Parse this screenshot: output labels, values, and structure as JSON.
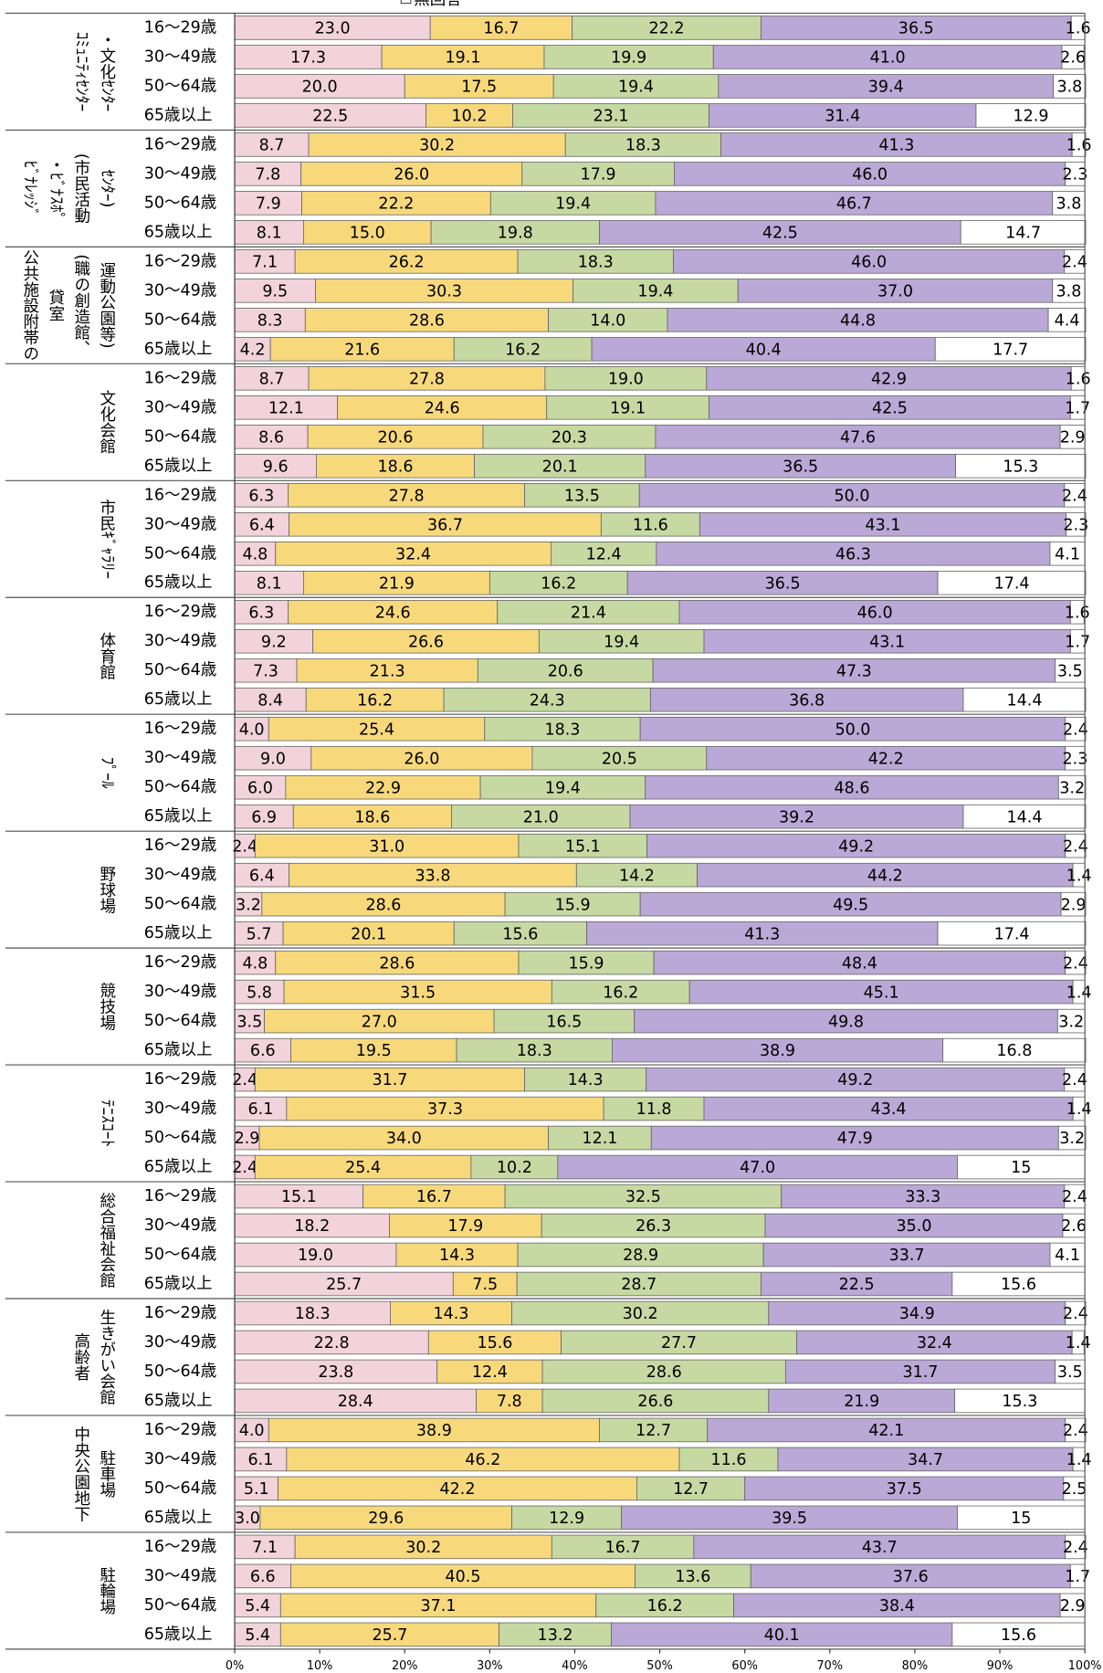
{
  "chart_data": {
    "type": "bar",
    "orientation": "horizontal",
    "stacked": true,
    "legend_visible": [
      "無回答"
    ],
    "groups": [
      {
        "label": [
          "ｺﾐｭﾆﾃｨｾﾝﾀｰ",
          "・文化ｾﾝﾀｰ"
        ]
      },
      {
        "label": [
          "ﾋﾞﾅﾚｯｼﾞ",
          "・ﾋﾞﾅｽﾎﾟ",
          "(市民活動",
          "ｾﾝﾀｰ)"
        ]
      },
      {
        "label": [
          "公共施設附帯の",
          "貸室",
          "(職の創造館、",
          "運動公園等)"
        ]
      },
      {
        "label": [
          "文化会館"
        ]
      },
      {
        "label": [
          "市民ｷﾞｬﾗﾘｰ"
        ]
      },
      {
        "label": [
          "体育館"
        ]
      },
      {
        "label": [
          "ﾌﾟｰﾙ"
        ]
      },
      {
        "label": [
          "野球場"
        ]
      },
      {
        "label": [
          "競技場"
        ]
      },
      {
        "label": [
          "ﾃﾆｽｺｰﾄ"
        ]
      },
      {
        "label": [
          "総合福祉会館"
        ]
      },
      {
        "label": [
          "高齢者",
          "生きがい会館"
        ]
      },
      {
        "label": [
          "中央公園地下",
          "駐車場"
        ]
      },
      {
        "label": [
          "駐輪場"
        ]
      }
    ],
    "categories": [
      "16～29歳",
      "30～49歳",
      "50～64歳",
      "65歳以上",
      "16～29歳",
      "30～49歳",
      "50～64歳",
      "65歳以上",
      "16～29歳",
      "30～49歳",
      "50～64歳",
      "65歳以上",
      "16～29歳",
      "30～49歳",
      "50～64歳",
      "65歳以上",
      "16～29歳",
      "30～49歳",
      "50～64歳",
      "65歳以上",
      "16～29歳",
      "30～49歳",
      "50～64歳",
      "65歳以上",
      "16～29歳",
      "30～49歳",
      "50～64歳",
      "65歳以上",
      "16～29歳",
      "30～49歳",
      "50～64歳",
      "65歳以上",
      "16～29歳",
      "30～49歳",
      "50～64歳",
      "65歳以上",
      "16～29歳",
      "30～49歳",
      "50～64歳",
      "65歳以上",
      "16～29歳",
      "30～49歳",
      "50～64歳",
      "65歳以上",
      "16～29歳",
      "30～49歳",
      "50～64歳",
      "65歳以上",
      "16～29歳",
      "30～49歳",
      "50～64歳",
      "65歳以上",
      "16～29歳",
      "30～49歳",
      "50～64歳",
      "65歳以上"
    ],
    "series": [
      {
        "color": "#f2d3db",
        "values": [
          23.0,
          17.3,
          20.0,
          22.5,
          8.7,
          7.8,
          7.9,
          8.1,
          7.1,
          9.5,
          8.3,
          4.2,
          8.7,
          12.1,
          8.6,
          9.6,
          6.3,
          6.4,
          4.8,
          8.1,
          6.3,
          9.2,
          7.3,
          8.4,
          4.0,
          9.0,
          6.0,
          6.9,
          2.4,
          6.4,
          3.2,
          5.7,
          4.8,
          5.8,
          3.5,
          6.6,
          2.4,
          6.1,
          2.9,
          2.4,
          15.1,
          18.2,
          19.0,
          25.7,
          18.3,
          22.8,
          23.8,
          28.4,
          4.0,
          6.1,
          5.1,
          3.0,
          7.1,
          6.6,
          5.4,
          5.4
        ],
        "value_labels": [
          "23.0",
          "17.3",
          "20.0",
          "22.5",
          "8.7",
          "7.8",
          "7.9",
          "8.1",
          "7.1",
          "9.5",
          "8.3",
          "4.2",
          "8.7",
          "12.1",
          "8.6",
          "9.6",
          "6.3",
          "6.4",
          "4.8",
          "8.1",
          "6.3",
          "9.2",
          "7.3",
          "8.4",
          "4.0",
          "9.0",
          "6.0",
          "6.9",
          "2.4",
          "6.4",
          "3.2",
          "5.7",
          "4.8",
          "5.8",
          "3.5",
          "6.6",
          "2.4",
          "6.1",
          "2.9",
          "2.4",
          "15.1",
          "18.2",
          "19.0",
          "25.7",
          "18.3",
          "22.8",
          "23.8",
          "28.4",
          "4.0",
          "6.1",
          "5.1",
          "3.0",
          "7.1",
          "6.6",
          "5.4",
          "5.4"
        ]
      },
      {
        "color": "#f7d97c",
        "values": [
          16.7,
          19.1,
          17.5,
          10.2,
          30.2,
          26.0,
          22.2,
          15.0,
          26.2,
          30.3,
          28.6,
          21.6,
          27.8,
          24.6,
          20.6,
          18.6,
          27.8,
          36.7,
          32.4,
          21.9,
          24.6,
          26.6,
          21.3,
          16.2,
          25.4,
          26.0,
          22.9,
          18.6,
          31.0,
          33.8,
          28.6,
          20.1,
          28.6,
          31.5,
          27.0,
          19.5,
          31.7,
          37.3,
          34.0,
          25.4,
          16.7,
          17.9,
          14.3,
          7.5,
          14.3,
          15.6,
          12.4,
          7.8,
          38.9,
          46.2,
          42.2,
          29.6,
          30.2,
          40.5,
          37.1,
          25.7
        ],
        "value_labels": [
          "16.7",
          "19.1",
          "17.5",
          "10.2",
          "30.2",
          "26.0",
          "22.2",
          "15.0",
          "26.2",
          "30.3",
          "28.6",
          "21.6",
          "27.8",
          "24.6",
          "20.6",
          "18.6",
          "27.8",
          "36.7",
          "32.4",
          "21.9",
          "24.6",
          "26.6",
          "21.3",
          "16.2",
          "25.4",
          "26.0",
          "22.9",
          "18.6",
          "31.0",
          "33.8",
          "28.6",
          "20.1",
          "28.6",
          "31.5",
          "27.0",
          "19.5",
          "31.7",
          "37.3",
          "34.0",
          "25.4",
          "16.7",
          "17.9",
          "14.3",
          "7.5",
          "14.3",
          "15.6",
          "12.4",
          "7.8",
          "38.9",
          "46.2",
          "42.2",
          "29.6",
          "30.2",
          "40.5",
          "37.1",
          "25.7"
        ]
      },
      {
        "color": "#c6d9a2",
        "values": [
          22.2,
          19.9,
          19.4,
          23.1,
          18.3,
          17.9,
          19.4,
          19.8,
          18.3,
          19.4,
          14.0,
          16.2,
          19.0,
          19.1,
          20.3,
          20.1,
          13.5,
          11.6,
          12.4,
          16.2,
          21.4,
          19.4,
          20.6,
          24.3,
          18.3,
          20.5,
          19.4,
          21.0,
          15.1,
          14.2,
          15.9,
          15.6,
          15.9,
          16.2,
          16.5,
          18.3,
          14.3,
          11.8,
          12.1,
          10.2,
          32.5,
          26.3,
          28.9,
          28.7,
          30.2,
          27.7,
          28.6,
          26.6,
          12.7,
          11.6,
          12.7,
          12.9,
          16.7,
          13.6,
          16.2,
          13.2
        ],
        "value_labels": [
          "22.2",
          "19.9",
          "19.4",
          "23.1",
          "18.3",
          "17.9",
          "19.4",
          "19.8",
          "18.3",
          "19.4",
          "14.0",
          "16.2",
          "19.0",
          "19.1",
          "20.3",
          "20.1",
          "13.5",
          "11.6",
          "12.4",
          "16.2",
          "21.4",
          "19.4",
          "20.6",
          "24.3",
          "18.3",
          "20.5",
          "19.4",
          "21.0",
          "15.1",
          "14.2",
          "15.9",
          "15.6",
          "15.9",
          "16.2",
          "16.5",
          "18.3",
          "14.3",
          "11.8",
          "12.1",
          "10.2",
          "32.5",
          "26.3",
          "28.9",
          "28.7",
          "30.2",
          "27.7",
          "28.6",
          "26.6",
          "12.7",
          "11.6",
          "12.7",
          "12.9",
          "16.7",
          "13.6",
          "16.2",
          "13.2"
        ]
      },
      {
        "color": "#baa8d6",
        "values": [
          36.5,
          41.0,
          39.4,
          31.4,
          41.3,
          46.0,
          46.7,
          42.5,
          46.0,
          37.0,
          44.8,
          40.4,
          42.9,
          42.5,
          47.6,
          36.5,
          50.0,
          43.1,
          46.3,
          36.5,
          46.0,
          43.1,
          47.3,
          36.8,
          50.0,
          42.2,
          48.6,
          39.2,
          49.2,
          44.2,
          49.5,
          41.3,
          48.4,
          45.1,
          49.8,
          38.9,
          49.2,
          43.4,
          47.9,
          47.0,
          33.3,
          35.0,
          33.7,
          22.5,
          34.9,
          32.4,
          31.7,
          21.9,
          42.1,
          34.7,
          37.5,
          39.5,
          43.7,
          37.6,
          38.4,
          40.1
        ],
        "value_labels": [
          "36.5",
          "41.0",
          "39.4",
          "31.4",
          "41.3",
          "46.0",
          "46.7",
          "42.5",
          "46.0",
          "37.0",
          "44.8",
          "40.4",
          "42.9",
          "42.5",
          "47.6",
          "36.5",
          "50.0",
          "43.1",
          "46.3",
          "36.5",
          "46.0",
          "43.1",
          "47.3",
          "36.8",
          "50.0",
          "42.2",
          "48.6",
          "39.2",
          "49.2",
          "44.2",
          "49.5",
          "41.3",
          "48.4",
          "45.1",
          "49.8",
          "38.9",
          "49.2",
          "43.4",
          "47.9",
          "47.0",
          "33.3",
          "35.0",
          "33.7",
          "22.5",
          "34.9",
          "32.4",
          "31.7",
          "21.9",
          "42.1",
          "34.7",
          "37.5",
          "39.5",
          "43.7",
          "37.6",
          "38.4",
          "40.1"
        ]
      },
      {
        "name": "無回答",
        "color": "#ffffff",
        "values": [
          1.6,
          2.6,
          3.8,
          12.9,
          1.6,
          2.3,
          3.8,
          14.7,
          2.4,
          3.8,
          4.4,
          17.7,
          1.6,
          1.7,
          2.9,
          15.3,
          2.4,
          2.3,
          4.1,
          17.4,
          1.6,
          1.7,
          3.5,
          14.4,
          2.4,
          2.3,
          3.2,
          14.4,
          2.4,
          1.4,
          2.9,
          17.4,
          2.4,
          1.4,
          3.2,
          16.8,
          2.4,
          1.4,
          3.2,
          15.0,
          2.4,
          2.6,
          4.1,
          15.6,
          2.4,
          1.4,
          3.5,
          15.3,
          2.4,
          1.4,
          2.5,
          15.0,
          2.4,
          1.7,
          2.9,
          15.6
        ]
      }
    ],
    "xlim": [
      0,
      100
    ],
    "xticks": [
      {
        "value": 0,
        "label": "0%"
      },
      {
        "value": 10,
        "label": "10%"
      },
      {
        "value": 20,
        "label": "20%"
      },
      {
        "value": 30,
        "label": "30%"
      },
      {
        "value": 40,
        "label": "40%"
      },
      {
        "value": 50,
        "label": "50%"
      },
      {
        "value": 60,
        "label": "60%"
      },
      {
        "value": 70,
        "label": "70%"
      },
      {
        "value": 80,
        "label": "80%"
      },
      {
        "value": 90,
        "label": "90%"
      },
      {
        "value": 100,
        "label": "100%"
      }
    ]
  }
}
